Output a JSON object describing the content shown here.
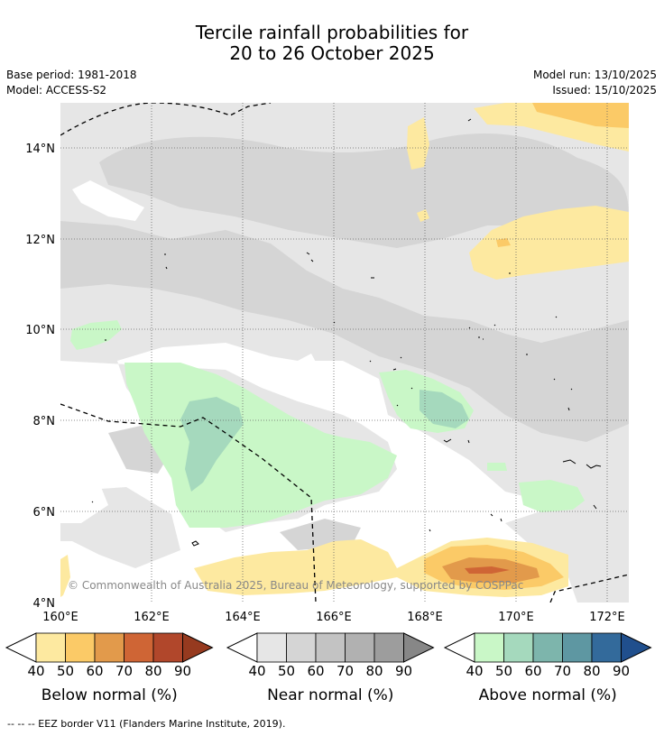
{
  "header": {
    "title_line1": "Tercile rainfall probabilities for",
    "title_line2": "20 to 26 October 2025",
    "base_period": "Base period: 1981-2018",
    "model": "Model: ACCESS-S2",
    "model_run": "Model run: 13/10/2025",
    "issued": "Issued: 15/10/2025"
  },
  "map": {
    "lat_labels": [
      "14°N",
      "12°N",
      "10°N",
      "8°N",
      "6°N",
      "4°N"
    ],
    "lon_labels": [
      "160°E",
      "162°E",
      "164°E",
      "166°E",
      "168°E",
      "170°E",
      "172°E"
    ],
    "copyright": "© Commonwealth of Australia 2025, Bureau of Meteorology, supported by COSPPac"
  },
  "colorbars": [
    {
      "name": "below",
      "title": "Below normal (%)",
      "ticks": [
        "40",
        "50",
        "60",
        "70",
        "80",
        "90"
      ],
      "colors": [
        "#fde9a0",
        "#fbca67",
        "#e29a4b",
        "#cf6535",
        "#b1472b",
        "#963a1f"
      ]
    },
    {
      "name": "near",
      "title": "Near normal (%)",
      "ticks": [
        "40",
        "50",
        "60",
        "70",
        "80",
        "90"
      ],
      "colors": [
        "#e6e6e6",
        "#d5d5d5",
        "#c3c3c3",
        "#b1b1b1",
        "#9d9d9d",
        "#878787"
      ]
    },
    {
      "name": "above",
      "title": "Above normal (%)",
      "ticks": [
        "40",
        "50",
        "60",
        "70",
        "80",
        "90"
      ],
      "colors": [
        "#c9f7c7",
        "#a5d9bd",
        "#7db5ac",
        "#5e97a2",
        "#336a9b",
        "#204f8d"
      ]
    }
  ],
  "footnote": "--  --  -- EEZ border V11 (Flanders Marine Institute, 2019)."
}
